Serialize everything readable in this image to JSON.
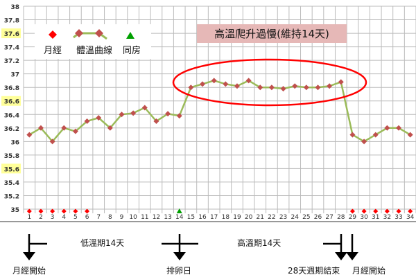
{
  "chart_data": {
    "type": "line",
    "title": "",
    "xlabel": "",
    "ylabel": "",
    "categories": [
      1,
      2,
      3,
      4,
      5,
      6,
      7,
      8,
      9,
      10,
      11,
      12,
      13,
      14,
      15,
      16,
      17,
      18,
      19,
      20,
      21,
      22,
      23,
      24,
      25,
      26,
      27,
      28,
      29,
      30,
      31,
      32,
      33,
      34
    ],
    "series": [
      {
        "name": "體溫曲線",
        "color": "#9bbb59",
        "marker_color": "#c0504d",
        "values": [
          36.1,
          36.2,
          36.0,
          36.2,
          36.15,
          36.3,
          36.35,
          36.2,
          36.4,
          36.42,
          36.5,
          36.3,
          36.41,
          36.38,
          36.8,
          36.85,
          36.9,
          36.85,
          36.82,
          36.9,
          36.8,
          36.8,
          36.78,
          36.82,
          36.8,
          36.8,
          36.82,
          36.88,
          36.1,
          36.0,
          36.1,
          36.2,
          36.2,
          36.1
        ]
      }
    ],
    "menstruation_days": [
      1,
      2,
      3,
      4,
      5,
      6,
      29,
      30,
      31,
      32,
      33,
      34
    ],
    "intercourse_days": [
      14
    ],
    "ylim": [
      35,
      38
    ],
    "yticks": [
      "35",
      "35.2",
      "35.4",
      "35.6",
      "35.8",
      "36",
      "36.2",
      "36.4",
      "36.6",
      "36.8",
      "37",
      "37.2",
      "37.4",
      "37.6",
      "37.8",
      "38"
    ],
    "highlighted_yticks": [
      "35.6",
      "36.6",
      "37.6"
    ],
    "grid": true,
    "legend": {
      "position": "top-left",
      "items": [
        {
          "label": "月經",
          "symbol": "diamond",
          "color": "#ff0000"
        },
        {
          "label": "體溫曲線",
          "symbol": "line-diamond",
          "color": "#9bbb59"
        },
        {
          "label": "同房",
          "symbol": "triangle",
          "color": "#00a000"
        }
      ]
    },
    "annotation": {
      "text": "高溫爬升過慢(維持14天)",
      "bg": "#e6b8b7"
    },
    "ellipse_color": "#ff0000"
  },
  "below": {
    "low_phase": "低溫期14天",
    "high_phase": "高溫期14天",
    "period_start": "月經開始",
    "ovulation": "排卵日",
    "cycle_end": "28天週期結束",
    "next_period": "月經開始"
  }
}
